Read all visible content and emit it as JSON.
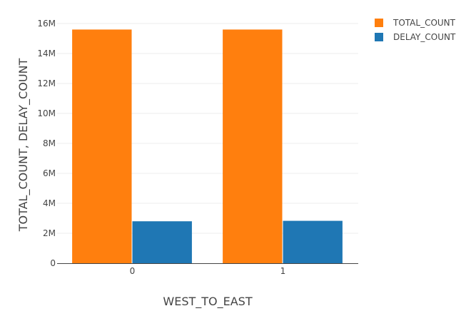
{
  "chart_data": {
    "type": "bar",
    "categories": [
      "0",
      "1"
    ],
    "series": [
      {
        "name": "TOTAL_COUNT",
        "values": [
          15600000,
          15600000
        ],
        "color": "#ff7f0e"
      },
      {
        "name": "DELAY_COUNT",
        "values": [
          2800000,
          2830000
        ],
        "color": "#1f77b4"
      }
    ],
    "xlabel": "WEST_TO_EAST",
    "ylabel": "TOTAL_COUNT, DELAY_COUNT",
    "ylim": [
      0,
      16000000
    ],
    "yticks": [
      0,
      2000000,
      4000000,
      6000000,
      8000000,
      10000000,
      12000000,
      14000000,
      16000000
    ],
    "ytick_labels": [
      "0",
      "2M",
      "4M",
      "6M",
      "8M",
      "10M",
      "12M",
      "14M",
      "16M"
    ],
    "grid": true,
    "legend_position": "top-right"
  }
}
